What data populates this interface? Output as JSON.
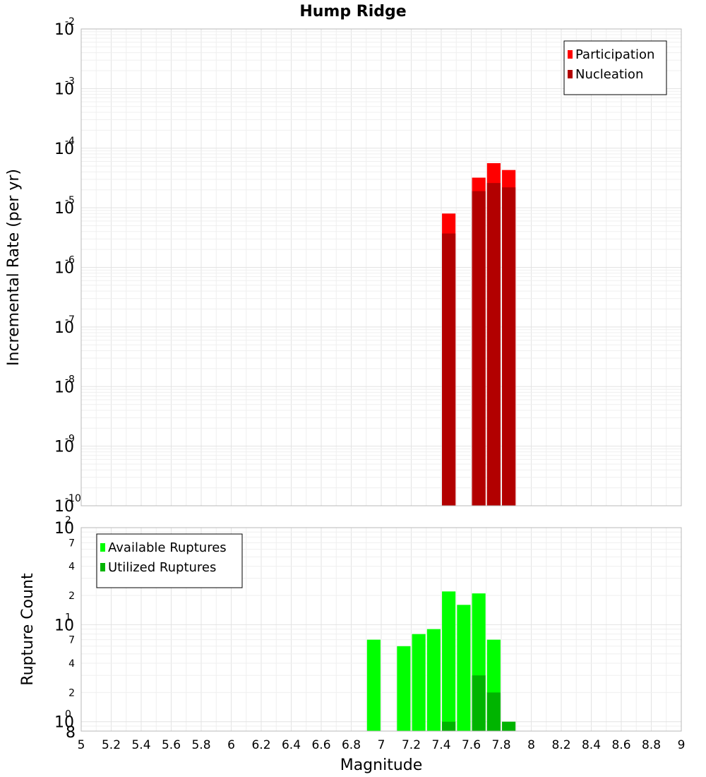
{
  "chart_data": [
    {
      "type": "bar",
      "title": "Hump Ridge",
      "ylabel": "Incremental Rate (per yr)",
      "xlabel": "",
      "xlim": [
        5,
        9
      ],
      "ylim": [
        1e-10,
        0.01
      ],
      "yscale": "log",
      "grid": true,
      "legend_position": "top-right",
      "bar_width": 0.09,
      "series": [
        {
          "name": "Participation",
          "color": "#ff0000",
          "x": [
            7.45,
            7.65,
            7.75,
            7.85
          ],
          "values": [
            8e-06,
            3.2e-05,
            5.6e-05,
            4.3e-05
          ]
        },
        {
          "name": "Nucleation",
          "color": "#b20000",
          "x": [
            7.45,
            7.65,
            7.75,
            7.85
          ],
          "values": [
            3.7e-06,
            1.9e-05,
            2.6e-05,
            2.2e-05
          ]
        }
      ],
      "y_ticks": [
        {
          "base": "10",
          "exp": "-2"
        },
        {
          "base": "10",
          "exp": "-3"
        },
        {
          "base": "10",
          "exp": "-4"
        },
        {
          "base": "10",
          "exp": "-5"
        },
        {
          "base": "10",
          "exp": "-6"
        },
        {
          "base": "10",
          "exp": "-7"
        },
        {
          "base": "10",
          "exp": "-8"
        },
        {
          "base": "10",
          "exp": "-9"
        },
        {
          "base": "10",
          "exp": "-10"
        }
      ]
    },
    {
      "type": "bar",
      "title": "",
      "ylabel": "Rupture Count",
      "xlabel": "Magnitude",
      "xlim": [
        5,
        9
      ],
      "ylim": [
        0.8,
        100
      ],
      "yscale": "log",
      "grid": true,
      "legend_position": "top-left",
      "bar_width": 0.09,
      "series": [
        {
          "name": "Available Ruptures",
          "color": "#00ff00",
          "x": [
            6.95,
            7.15,
            7.25,
            7.35,
            7.45,
            7.55,
            7.65,
            7.75
          ],
          "values": [
            7,
            6,
            8,
            9,
            22,
            16,
            21,
            7
          ]
        },
        {
          "name": "Utilized Ruptures",
          "color": "#00b400",
          "x": [
            7.45,
            7.65,
            7.75,
            7.85
          ],
          "values": [
            1,
            3,
            2,
            1
          ]
        }
      ],
      "y_ticks": [
        {
          "base": "10",
          "exp": "2"
        },
        {
          "base": "10",
          "exp": "1"
        },
        {
          "base": "10",
          "exp": "0"
        }
      ],
      "y_minor_ticks": [
        "7",
        "4",
        "2",
        "7",
        "4",
        "2",
        "8"
      ],
      "x_ticks": [
        "5",
        "5.2",
        "5.4",
        "5.6",
        "5.8",
        "6",
        "6.2",
        "6.4",
        "6.6",
        "6.8",
        "7",
        "7.2",
        "7.4",
        "7.6",
        "7.8",
        "8",
        "8.2",
        "8.4",
        "8.6",
        "8.8",
        "9"
      ]
    }
  ]
}
